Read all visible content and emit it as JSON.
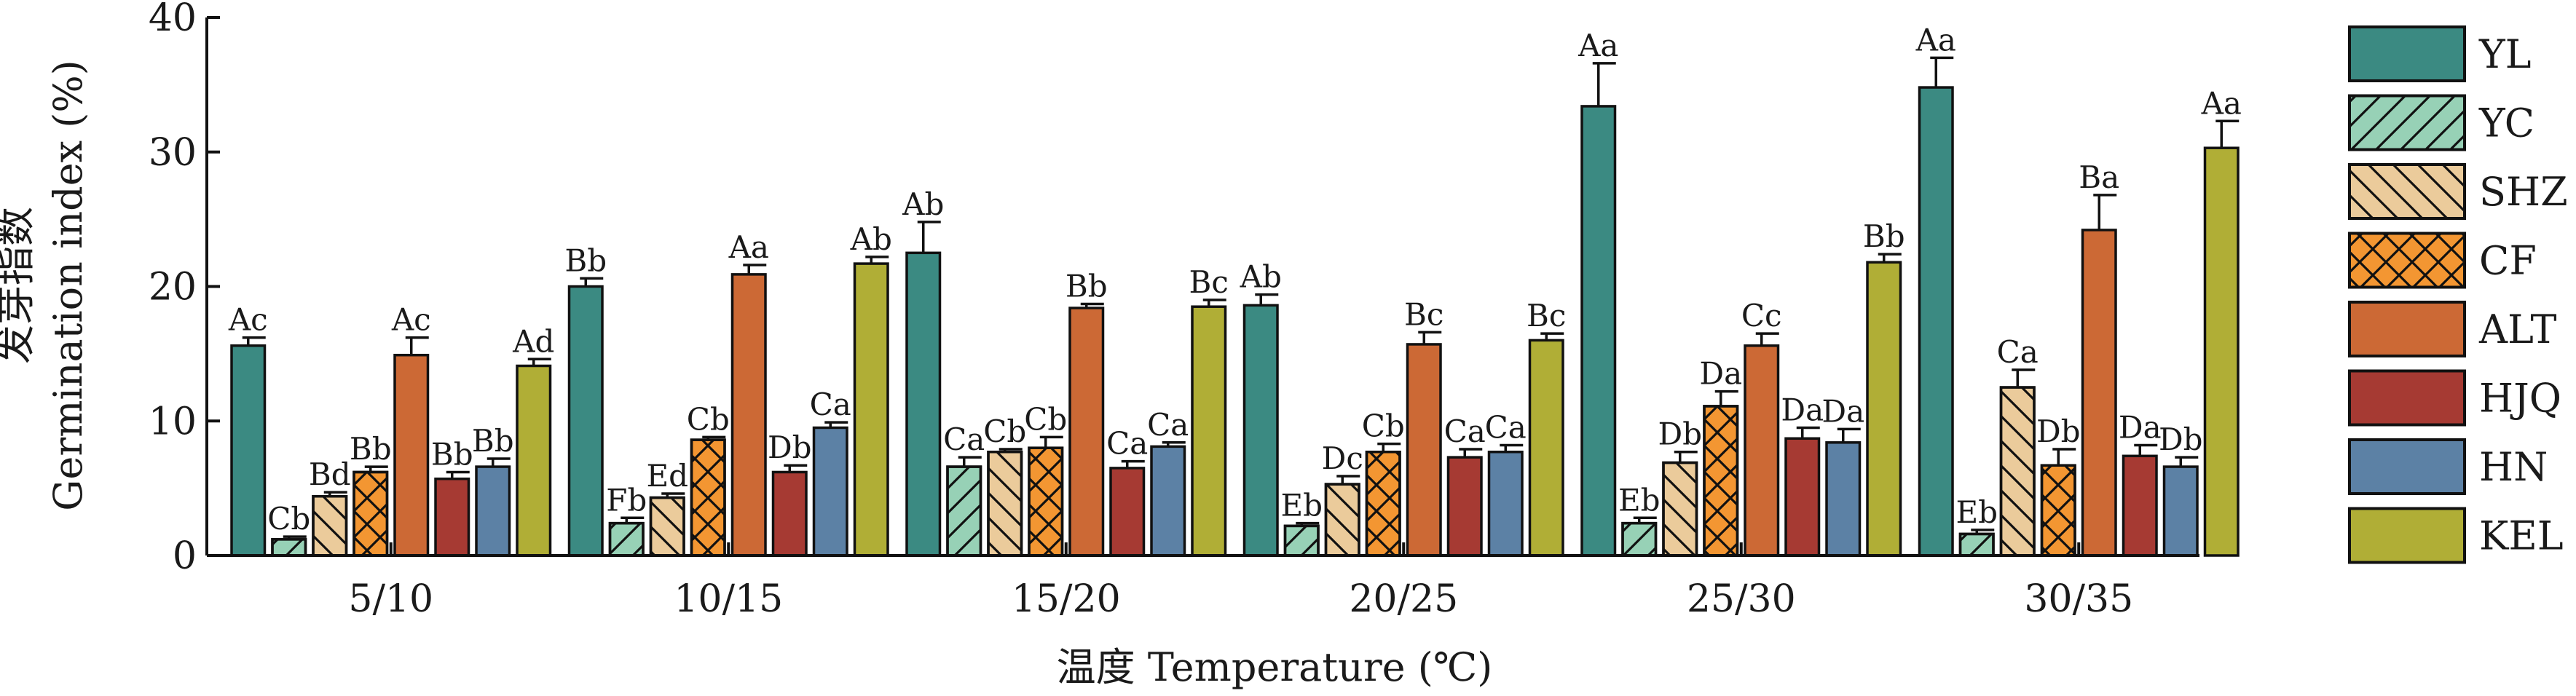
{
  "chart_data": {
    "type": "bar",
    "title": "",
    "xlabel": "温度 Temperature (℃)",
    "ylabel_cn": "发芽指数",
    "ylabel_en": "Germination index (%)",
    "categories": [
      "5/10",
      "10/15",
      "15/20",
      "20/25",
      "25/30",
      "30/35"
    ],
    "ylim": [
      0,
      40
    ],
    "yticks": [
      "0",
      "10",
      "20",
      "30",
      "40"
    ],
    "grid": false,
    "legend_position": "right",
    "series": [
      {
        "name": "YL",
        "color": "#3b8a82",
        "pattern": "none",
        "values": [
          15.6,
          20.0,
          22.5,
          18.6,
          33.4,
          34.8
        ],
        "errors": [
          0.6,
          0.6,
          2.3,
          0.8,
          3.2,
          2.2
        ],
        "letters": [
          "Ac",
          "Bb",
          "Ab",
          "Ab",
          "Aa",
          "Aa"
        ]
      },
      {
        "name": "YC",
        "color": "#97d1b6",
        "pattern": "diagonal",
        "values": [
          1.2,
          2.4,
          6.6,
          2.2,
          2.4,
          1.6
        ],
        "errors": [
          0.2,
          0.4,
          0.7,
          0.2,
          0.4,
          0.3
        ],
        "letters": [
          "Cb",
          "Fb",
          "Ca",
          "Eb",
          "Eb",
          "Eb"
        ]
      },
      {
        "name": "SHZ",
        "color": "#ebcb9b",
        "pattern": "backslash",
        "values": [
          4.4,
          4.3,
          7.7,
          5.3,
          6.9,
          12.5
        ],
        "errors": [
          0.3,
          0.3,
          0.2,
          0.6,
          0.8,
          1.3
        ],
        "letters": [
          "Bd",
          "Ed",
          "Cb",
          "Dc",
          "Db",
          "Ca"
        ]
      },
      {
        "name": "CF",
        "color": "#f39632",
        "pattern": "cross",
        "values": [
          6.2,
          8.6,
          8.0,
          7.7,
          11.1,
          6.7
        ],
        "errors": [
          0.4,
          0.2,
          0.8,
          0.6,
          1.1,
          1.2
        ],
        "letters": [
          "Bb",
          "Cb",
          "Cb",
          "Cb",
          "Da",
          "Db"
        ]
      },
      {
        "name": "ALT",
        "color": "#cc6935",
        "pattern": "none",
        "values": [
          14.9,
          20.9,
          18.4,
          15.7,
          15.6,
          24.2
        ],
        "errors": [
          1.3,
          0.7,
          0.3,
          0.9,
          0.9,
          2.6
        ],
        "letters": [
          "Ac",
          "Aa",
          "Bb",
          "Bc",
          "Cc",
          "Ba"
        ]
      },
      {
        "name": "HJQ",
        "color": "#a63a33",
        "pattern": "none",
        "values": [
          5.7,
          6.2,
          6.5,
          7.3,
          8.7,
          7.4
        ],
        "errors": [
          0.5,
          0.5,
          0.5,
          0.6,
          0.8,
          0.8
        ],
        "letters": [
          "Bb",
          "Db",
          "Ca",
          "Ca",
          "Da",
          "Da"
        ]
      },
      {
        "name": "HN",
        "color": "#5c81a5",
        "pattern": "none",
        "values": [
          6.6,
          9.5,
          8.1,
          7.7,
          8.4,
          6.6
        ],
        "errors": [
          0.6,
          0.4,
          0.3,
          0.5,
          1.0,
          0.7
        ],
        "letters": [
          "Bb",
          "Ca",
          "Ca",
          "Ca",
          "Da",
          "Db"
        ]
      },
      {
        "name": "KEL",
        "color": "#b0ae36",
        "pattern": "none",
        "values": [
          14.1,
          21.7,
          18.5,
          16.0,
          21.8,
          30.3
        ],
        "errors": [
          0.5,
          0.5,
          0.5,
          0.5,
          0.6,
          2.0
        ],
        "letters": [
          "Ad",
          "Ab",
          "Bc",
          "Bc",
          "Bb",
          "Aa"
        ]
      }
    ]
  }
}
